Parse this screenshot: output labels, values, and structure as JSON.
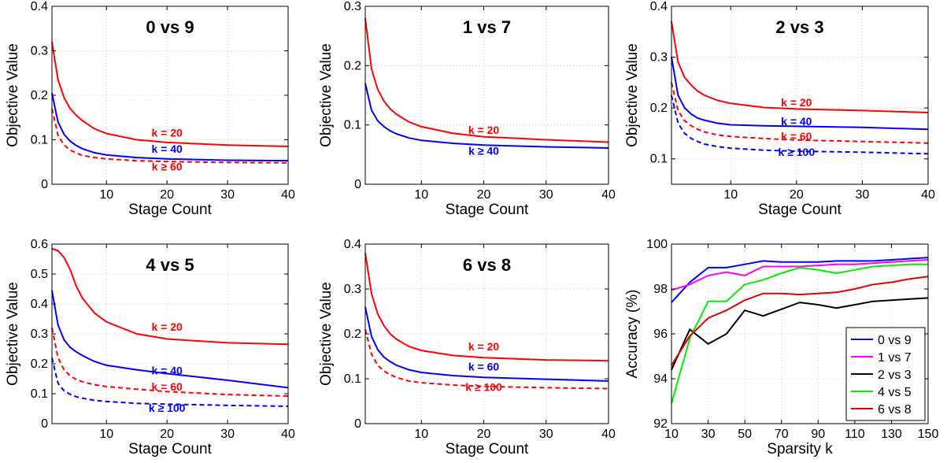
{
  "chart_data": [
    {
      "type": "line",
      "title": "0 vs 9",
      "xlabel": "Stage Count",
      "ylabel": "Objective Value",
      "xlim": [
        1,
        40
      ],
      "ylim": [
        0,
        0.4
      ],
      "xticks": [
        "10",
        "20",
        "30",
        "40"
      ],
      "yticks": [
        "0",
        "0.1",
        "0.2",
        "0.3",
        "0.4"
      ],
      "series": [
        {
          "name": "k = 20",
          "color": "#ff0000",
          "dash": false,
          "x": [
            1,
            2,
            3,
            4,
            5,
            6,
            8,
            10,
            15,
            20,
            30,
            40
          ],
          "y": [
            0.32,
            0.235,
            0.195,
            0.17,
            0.155,
            0.143,
            0.125,
            0.114,
            0.1,
            0.094,
            0.088,
            0.085
          ]
        },
        {
          "name": "k = 40",
          "color": "#0000ff",
          "dash": false,
          "x": [
            1,
            2,
            3,
            4,
            5,
            6,
            8,
            10,
            15,
            20,
            30,
            40
          ],
          "y": [
            0.205,
            0.14,
            0.112,
            0.097,
            0.087,
            0.08,
            0.071,
            0.066,
            0.06,
            0.057,
            0.054,
            0.053
          ]
        },
        {
          "name": "k ≥ 60",
          "color": "#ff0000",
          "dash": true,
          "x": [
            1,
            2,
            3,
            4,
            5,
            6,
            8,
            10,
            15,
            20,
            30,
            40
          ],
          "y": [
            0.17,
            0.11,
            0.088,
            0.077,
            0.07,
            0.065,
            0.06,
            0.057,
            0.053,
            0.051,
            0.049,
            0.048
          ]
        }
      ],
      "annotations": [
        {
          "text": "k = 20",
          "color": "#ff0000",
          "x": 20,
          "y": 0.107
        },
        {
          "text": "k = 40",
          "color": "#0000ff",
          "x": 20,
          "y": 0.071
        },
        {
          "text": "k ≥ 60",
          "color": "#ff0000",
          "x": 20,
          "y": 0.031
        }
      ]
    },
    {
      "type": "line",
      "title": "1 vs 7",
      "xlabel": "Stage Count",
      "ylabel": "Objective Value",
      "xlim": [
        1,
        40
      ],
      "ylim": [
        0,
        0.3
      ],
      "xticks": [
        "10",
        "20",
        "30",
        "40"
      ],
      "yticks": [
        "0",
        "0.1",
        "0.2",
        "0.3"
      ],
      "series": [
        {
          "name": "k = 20",
          "color": "#ff0000",
          "dash": false,
          "x": [
            1,
            2,
            3,
            4,
            5,
            6,
            8,
            10,
            15,
            20,
            30,
            40
          ],
          "y": [
            0.28,
            0.195,
            0.16,
            0.14,
            0.127,
            0.118,
            0.105,
            0.097,
            0.086,
            0.08,
            0.075,
            0.071
          ]
        },
        {
          "name": "k ≥ 40",
          "color": "#0000ff",
          "dash": false,
          "x": [
            1,
            2,
            3,
            4,
            5,
            6,
            8,
            10,
            15,
            20,
            30,
            40
          ],
          "y": [
            0.17,
            0.125,
            0.107,
            0.097,
            0.09,
            0.085,
            0.078,
            0.074,
            0.069,
            0.066,
            0.063,
            0.061
          ]
        }
      ],
      "annotations": [
        {
          "text": "k = 20",
          "color": "#ff0000",
          "x": 20,
          "y": 0.085
        },
        {
          "text": "k ≥ 40",
          "color": "#0000ff",
          "x": 20,
          "y": 0.05
        }
      ]
    },
    {
      "type": "line",
      "title": "2 vs 3",
      "xlabel": "Stage Count",
      "ylabel": "Objective Value",
      "xlim": [
        1,
        40
      ],
      "ylim": [
        0.05,
        0.4
      ],
      "xticks": [
        "10",
        "20",
        "30",
        "40"
      ],
      "yticks": [
        "0.1",
        "0.2",
        "0.3",
        "0.4"
      ],
      "series": [
        {
          "name": "k = 20",
          "color": "#ff0000",
          "dash": false,
          "x": [
            1,
            2,
            3,
            4,
            5,
            6,
            8,
            10,
            15,
            20,
            30,
            40
          ],
          "y": [
            0.37,
            0.29,
            0.26,
            0.245,
            0.233,
            0.225,
            0.215,
            0.209,
            0.201,
            0.198,
            0.195,
            0.191
          ]
        },
        {
          "name": "k = 40",
          "color": "#0000ff",
          "dash": false,
          "x": [
            1,
            2,
            3,
            4,
            5,
            6,
            8,
            10,
            15,
            20,
            30,
            40
          ],
          "y": [
            0.3,
            0.225,
            0.2,
            0.188,
            0.18,
            0.176,
            0.17,
            0.167,
            0.165,
            0.164,
            0.162,
            0.158
          ]
        },
        {
          "name": "k = 60",
          "color": "#ff0000",
          "dash": true,
          "x": [
            1,
            2,
            3,
            4,
            5,
            6,
            8,
            10,
            15,
            20,
            30,
            40
          ],
          "y": [
            0.25,
            0.195,
            0.175,
            0.165,
            0.158,
            0.153,
            0.147,
            0.144,
            0.14,
            0.137,
            0.134,
            0.131
          ]
        },
        {
          "name": "k ≥ 100",
          "color": "#0000ff",
          "dash": true,
          "x": [
            1,
            2,
            3,
            4,
            5,
            6,
            8,
            10,
            15,
            20,
            30,
            40
          ],
          "y": [
            0.225,
            0.17,
            0.15,
            0.14,
            0.134,
            0.129,
            0.124,
            0.121,
            0.117,
            0.115,
            0.113,
            0.11
          ]
        }
      ],
      "annotations": [
        {
          "text": "k = 20",
          "color": "#ff0000",
          "x": 20,
          "y": 0.203
        },
        {
          "text": "k = 40",
          "color": "#0000ff",
          "x": 20,
          "y": 0.166
        },
        {
          "text": "k = 60",
          "color": "#ff0000",
          "x": 20,
          "y": 0.137
        },
        {
          "text": "k ≥ 100",
          "color": "#0000ff",
          "x": 20,
          "y": 0.106
        }
      ]
    },
    {
      "type": "line",
      "title": "4 vs 5",
      "xlabel": "Stage Count",
      "ylabel": "Objective Value",
      "xlim": [
        1,
        40
      ],
      "ylim": [
        0,
        0.6
      ],
      "xticks": [
        "10",
        "20",
        "30",
        "40"
      ],
      "yticks": [
        "0",
        "0.1",
        "0.2",
        "0.3",
        "0.4",
        "0.5",
        "0.6"
      ],
      "series": [
        {
          "name": "k = 20",
          "color": "#ff0000",
          "dash": false,
          "x": [
            1,
            2,
            3,
            4,
            5,
            6,
            8,
            10,
            15,
            20,
            30,
            40
          ],
          "y": [
            0.585,
            0.578,
            0.555,
            0.515,
            0.46,
            0.42,
            0.37,
            0.34,
            0.3,
            0.283,
            0.27,
            0.265
          ]
        },
        {
          "name": "k = 40",
          "color": "#0000ff",
          "dash": false,
          "x": [
            1,
            2,
            3,
            4,
            5,
            6,
            8,
            10,
            15,
            20,
            30,
            40
          ],
          "y": [
            0.445,
            0.33,
            0.28,
            0.255,
            0.24,
            0.228,
            0.208,
            0.195,
            0.18,
            0.167,
            0.145,
            0.12
          ]
        },
        {
          "name": "k = 60",
          "color": "#ff0000",
          "dash": true,
          "x": [
            1,
            2,
            3,
            4,
            5,
            6,
            8,
            10,
            15,
            20,
            30,
            40
          ],
          "y": [
            0.32,
            0.22,
            0.18,
            0.16,
            0.148,
            0.14,
            0.13,
            0.124,
            0.115,
            0.107,
            0.097,
            0.092
          ]
        },
        {
          "name": "k ≥ 100",
          "color": "#0000ff",
          "dash": true,
          "x": [
            1,
            2,
            3,
            4,
            5,
            6,
            8,
            10,
            15,
            20,
            30,
            40
          ],
          "y": [
            0.22,
            0.135,
            0.11,
            0.098,
            0.09,
            0.085,
            0.078,
            0.074,
            0.068,
            0.065,
            0.061,
            0.058
          ]
        }
      ],
      "annotations": [
        {
          "text": "k = 20",
          "color": "#ff0000",
          "x": 20,
          "y": 0.31
        },
        {
          "text": "k = 40",
          "color": "#0000ff",
          "x": 20,
          "y": 0.165
        },
        {
          "text": "k = 60",
          "color": "#ff0000",
          "x": 20,
          "y": 0.11
        },
        {
          "text": "k ≥ 100",
          "color": "#0000ff",
          "x": 20,
          "y": 0.04
        }
      ]
    },
    {
      "type": "line",
      "title": "6 vs 8",
      "xlabel": "Stage Count",
      "ylabel": "Objective Value",
      "xlim": [
        1,
        40
      ],
      "ylim": [
        0,
        0.4
      ],
      "xticks": [
        "10",
        "20",
        "30",
        "40"
      ],
      "yticks": [
        "0",
        "0.1",
        "0.2",
        "0.3",
        "0.4"
      ],
      "series": [
        {
          "name": "k = 20",
          "color": "#ff0000",
          "dash": false,
          "x": [
            1,
            2,
            3,
            4,
            5,
            6,
            8,
            10,
            15,
            20,
            30,
            40
          ],
          "y": [
            0.38,
            0.29,
            0.245,
            0.218,
            0.2,
            0.188,
            0.172,
            0.163,
            0.152,
            0.147,
            0.142,
            0.14
          ]
        },
        {
          "name": "k = 60",
          "color": "#0000ff",
          "dash": false,
          "x": [
            1,
            2,
            3,
            4,
            5,
            6,
            8,
            10,
            15,
            20,
            30,
            40
          ],
          "y": [
            0.26,
            0.195,
            0.165,
            0.148,
            0.138,
            0.13,
            0.12,
            0.114,
            0.107,
            0.103,
            0.099,
            0.095
          ]
        },
        {
          "name": "k ≥ 100",
          "color": "#ff0000",
          "dash": true,
          "x": [
            1,
            2,
            3,
            4,
            5,
            6,
            8,
            10,
            15,
            20,
            30,
            40
          ],
          "y": [
            0.21,
            0.155,
            0.13,
            0.117,
            0.109,
            0.103,
            0.095,
            0.091,
            0.086,
            0.083,
            0.08,
            0.078
          ]
        }
      ],
      "annotations": [
        {
          "text": "k = 20",
          "color": "#ff0000",
          "x": 20,
          "y": 0.163
        },
        {
          "text": "k = 60",
          "color": "#0000ff",
          "x": 20,
          "y": 0.118
        },
        {
          "text": "k ≥ 100",
          "color": "#ff0000",
          "x": 20,
          "y": 0.073
        }
      ]
    },
    {
      "type": "line",
      "title": "",
      "xlabel": "Sparsity k",
      "ylabel": "Accuracy (%)",
      "xlim": [
        10,
        150
      ],
      "ylim": [
        92,
        100
      ],
      "xticks": [
        "10",
        "30",
        "50",
        "70",
        "90",
        "110",
        "130",
        "150"
      ],
      "xtick_values": [
        10,
        30,
        50,
        70,
        90,
        110,
        130,
        150
      ],
      "ytick_values": [
        92,
        94,
        96,
        98,
        100
      ],
      "yticks": [
        "92",
        "94",
        "96",
        "98",
        "100"
      ],
      "legend_position": "bottom-right",
      "series": [
        {
          "name": "0 vs 9",
          "color": "#0000ff",
          "dash": false,
          "x": [
            10,
            20,
            30,
            40,
            50,
            60,
            70,
            80,
            90,
            100,
            110,
            120,
            130,
            140,
            150
          ],
          "y": [
            97.4,
            98.3,
            98.95,
            98.95,
            99.1,
            99.25,
            99.2,
            99.2,
            99.2,
            99.25,
            99.25,
            99.25,
            99.3,
            99.35,
            99.4
          ]
        },
        {
          "name": "1 vs 7",
          "color": "#ff00ff",
          "dash": false,
          "x": [
            10,
            20,
            30,
            40,
            50,
            60,
            70,
            80,
            90,
            100,
            110,
            120,
            130,
            140,
            150
          ],
          "y": [
            97.95,
            98.2,
            98.6,
            98.75,
            98.6,
            99.0,
            99.0,
            99.0,
            99.05,
            99.1,
            99.1,
            99.15,
            99.2,
            99.25,
            99.3
          ]
        },
        {
          "name": "2 vs 3",
          "color": "#000000",
          "dash": false,
          "x": [
            10,
            20,
            30,
            40,
            50,
            60,
            70,
            80,
            90,
            100,
            110,
            120,
            130,
            140,
            150
          ],
          "y": [
            94.4,
            96.2,
            95.55,
            96.0,
            97.05,
            96.8,
            97.1,
            97.4,
            97.3,
            97.15,
            97.3,
            97.45,
            97.5,
            97.55,
            97.6
          ]
        },
        {
          "name": "4 vs 5",
          "color": "#00ee00",
          "dash": false,
          "x": [
            10,
            20,
            30,
            40,
            50,
            60,
            70,
            80,
            90,
            100,
            110,
            120,
            130,
            140,
            150
          ],
          "y": [
            92.9,
            95.8,
            97.45,
            97.45,
            98.2,
            98.4,
            98.7,
            98.95,
            98.85,
            98.7,
            98.85,
            99.0,
            99.05,
            99.1,
            99.1
          ]
        },
        {
          "name": "6 vs 8",
          "color": "#e00000",
          "dash": false,
          "x": [
            10,
            20,
            30,
            40,
            50,
            60,
            70,
            80,
            90,
            100,
            110,
            120,
            130,
            140,
            150
          ],
          "y": [
            94.6,
            95.9,
            96.7,
            97.05,
            97.5,
            97.8,
            97.8,
            97.75,
            97.8,
            97.85,
            98.0,
            98.2,
            98.3,
            98.45,
            98.55
          ]
        }
      ]
    }
  ]
}
